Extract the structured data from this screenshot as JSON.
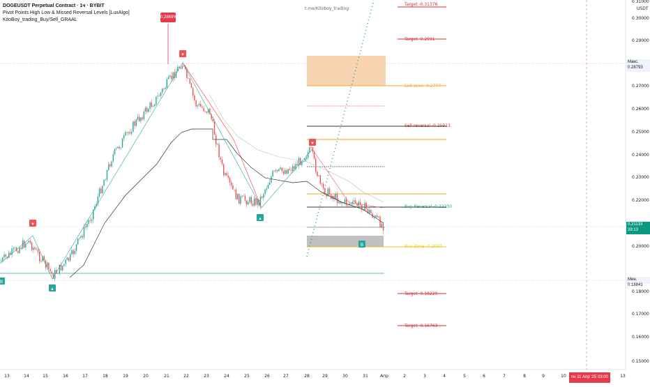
{
  "header": {
    "symbol_title": "DOGEUSDT Perpetual Contract · 1ч · BYBIT",
    "indicator_1": "Pivot Points High Low & Missed Reversal Levels [LuxAlgo]",
    "indicator_2": "KitoBoy_trading_Buy/Sell_GRAAL"
  },
  "top_watermark": "t.me/Kitoboy_trading",
  "currency": "USDT",
  "price_axis": {
    "ticks": [
      "0.30000",
      "0.29000",
      "0.28000",
      "0.27000",
      "0.26000",
      "0.25000",
      "0.24000",
      "0.23000",
      "0.22000",
      "0.20000",
      "0.18000",
      "0.17000",
      "0.16000",
      "0.15000"
    ],
    "top_cut_label": "0.31000",
    "max_label": "Макс.",
    "max_value": "0.28793",
    "min_label": "Мин.",
    "min_value": "0.18841",
    "current_value": "0.21133",
    "countdown": "39:13"
  },
  "time_axis": {
    "labels": [
      "13",
      "14",
      "15",
      "16",
      "17",
      "18",
      "19",
      "20",
      "21",
      "22",
      "23",
      "24",
      "25",
      "26",
      "27",
      "28",
      "29",
      "30",
      "31",
      "Апр",
      "2",
      "3",
      "4",
      "5",
      "6",
      "7",
      "8",
      "9",
      "10",
      "11",
      "12",
      "13"
    ],
    "crosshair_date": "пн 11 Апр '25",
    "crosshair_time": "03:00"
  },
  "callout_value": "0,2869%",
  "levels": [
    {
      "text": "Target -0.31376",
      "color": "#d32f2f"
    },
    {
      "text": "Target -0.2991",
      "color": "#d32f2f"
    },
    {
      "text": "Sell zone -0.2777",
      "color": "#f5a623"
    },
    {
      "text": "Sell reversal -0.25913",
      "color": "#d32f2f"
    },
    {
      "text": "Buy Reversal -0.22230",
      "color": "#26a69a"
    },
    {
      "text": "Buy Zone -0.2037",
      "color": "#f5c518"
    },
    {
      "text": "Target -0.18229",
      "color": "#d32f2f"
    },
    {
      "text": "Target -0.16763",
      "color": "#d32f2f"
    }
  ],
  "markers": {
    "sell_glyph": "▼",
    "buy_glyph": "▲",
    "buy_alt_glyph": "B"
  },
  "colors": {
    "up": "#26a69a",
    "down": "#ef5350",
    "sell_zone": "#f8c9a0",
    "buy_zone": "#b0b0b0",
    "current_price": "#089981"
  }
}
